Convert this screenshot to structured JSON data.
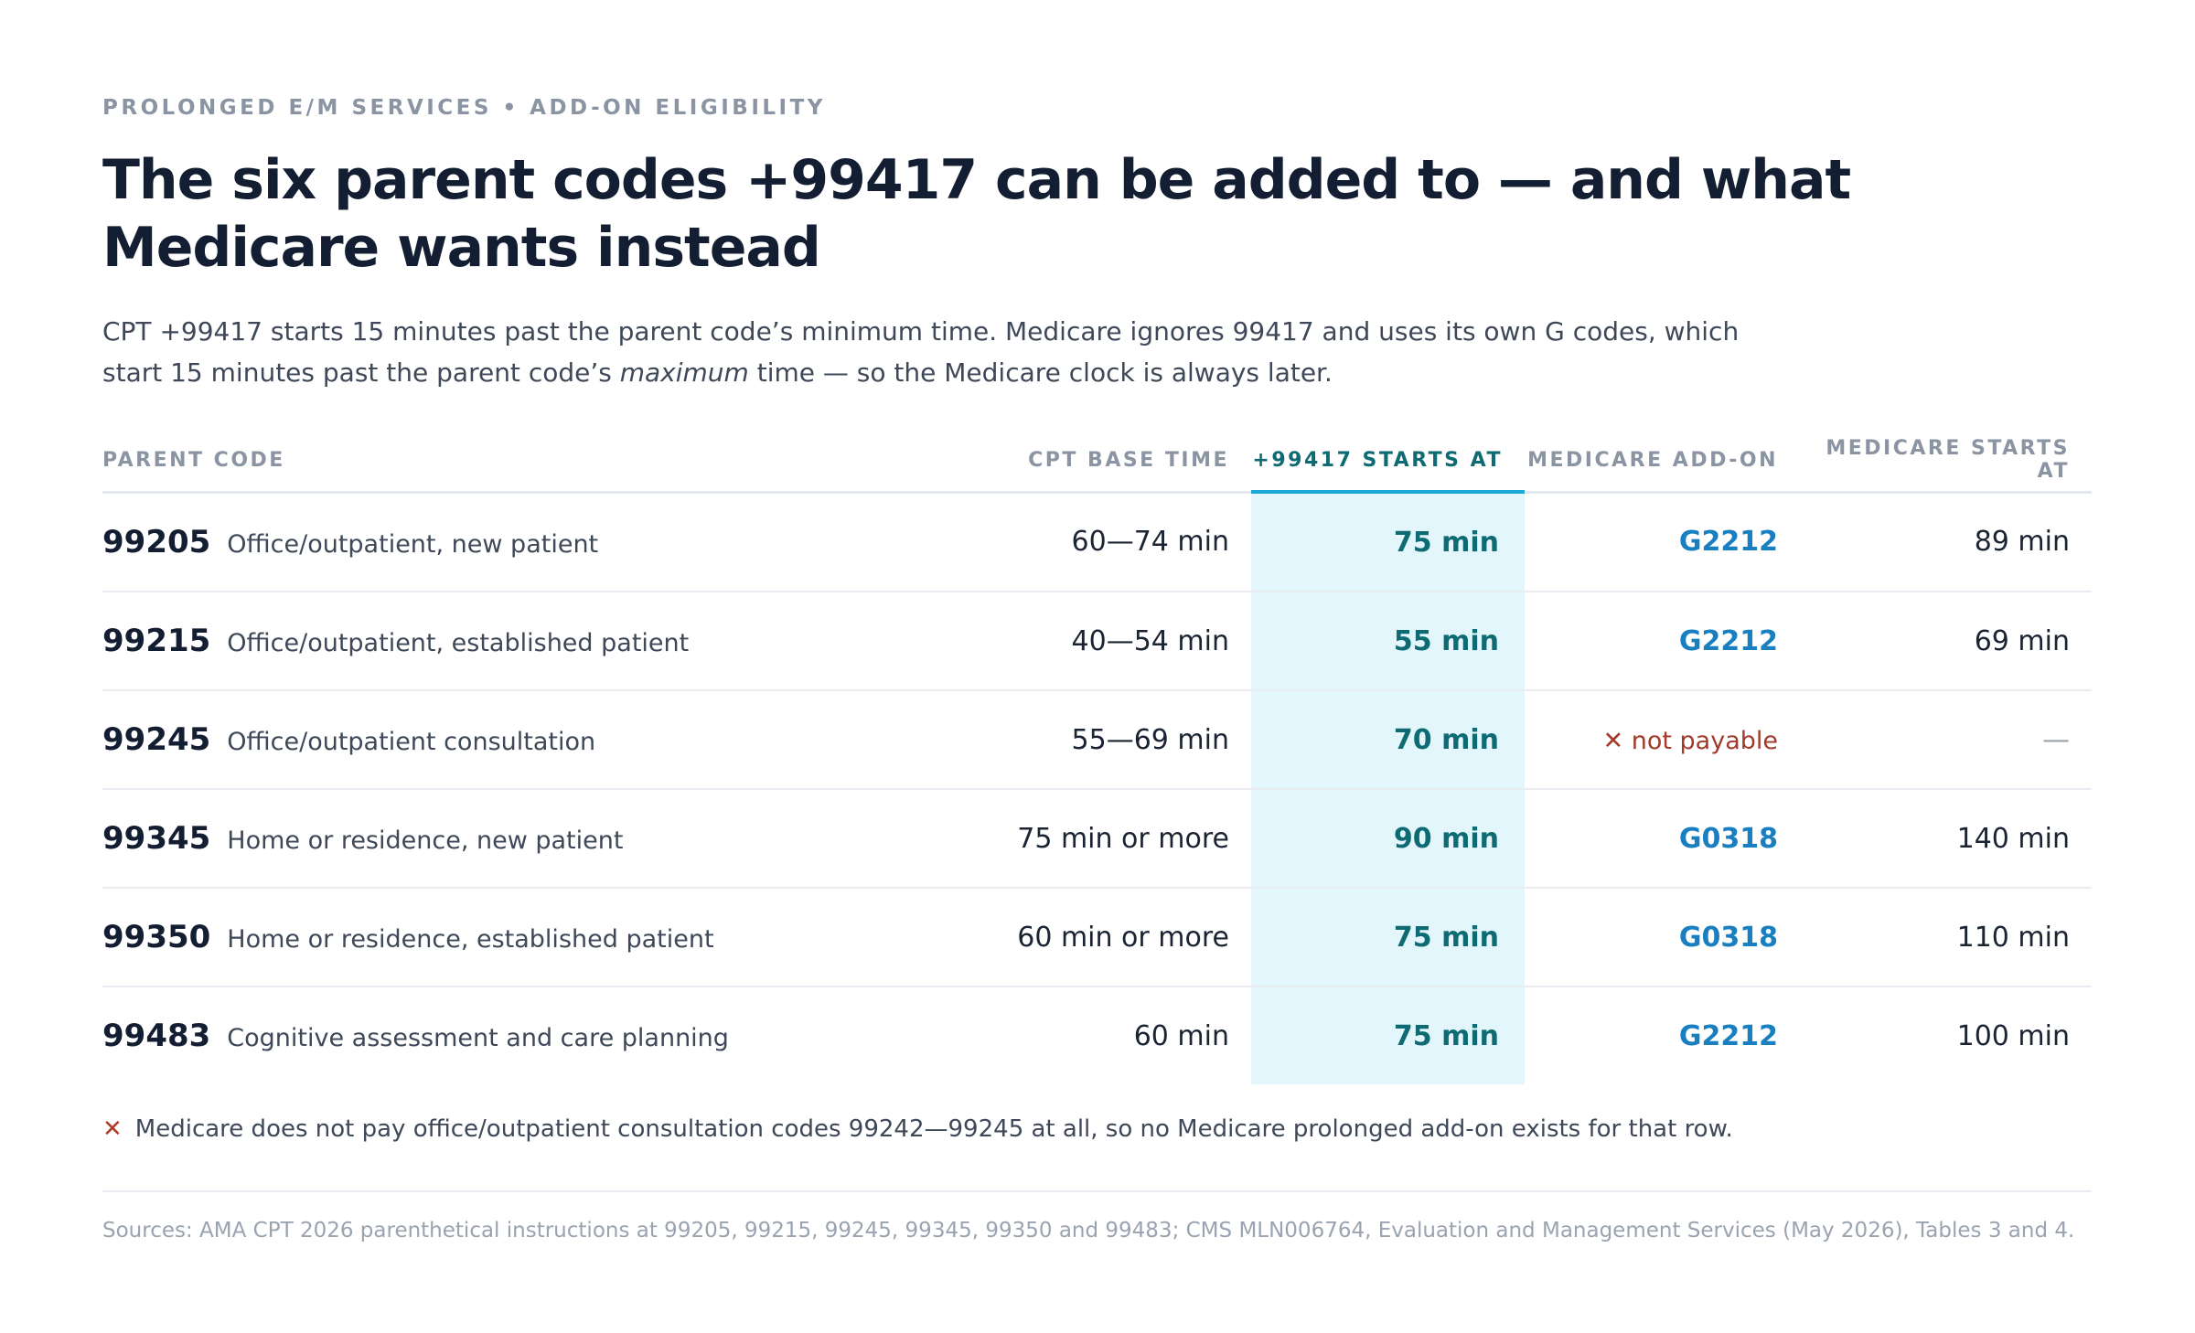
{
  "header": {
    "kicker": "PROLONGED E/M SERVICES • ADD-ON ELIGIBILITY",
    "title": "The six parent codes +99417 can be added to — and what Medicare wants instead",
    "subtitle_before": "CPT +99417 starts 15 minutes past the parent code’s minimum time. Medicare ignores 99417 and uses its own G codes, which start 15 minutes past the parent code’s",
    "subtitle_emphasis": "maximum",
    "subtitle_after": "time — so the Medicare clock is always later."
  },
  "table": {
    "columns": [
      "PARENT CODE",
      "CPT BASE TIME",
      "+99417 STARTS AT",
      "MEDICARE ADD-ON",
      "MEDICARE STARTS AT"
    ],
    "rows": [
      {
        "code": "99205",
        "description": "Office/outpatient, new patient",
        "base_time": "60—74 min",
        "starts_at": "75 min",
        "medicare_addon": "G2212",
        "medicare_starts_at": "89 min"
      },
      {
        "code": "99215",
        "description": "Office/outpatient, established patient",
        "base_time": "40—54 min",
        "starts_at": "55 min",
        "medicare_addon": "G2212",
        "medicare_starts_at": "69 min"
      },
      {
        "code": "99245",
        "description": "Office/outpatient consultation",
        "base_time": "55—69 min",
        "starts_at": "70 min",
        "medicare_addon": "not payable",
        "medicare_starts_at": "—"
      },
      {
        "code": "99345",
        "description": "Home or residence, new patient",
        "base_time": "75 min or more",
        "starts_at": "90 min",
        "medicare_addon": "G0318",
        "medicare_starts_at": "140 min"
      },
      {
        "code": "99350",
        "description": "Home or residence, established patient",
        "base_time": "60 min or more",
        "starts_at": "75 min",
        "medicare_addon": "G0318",
        "medicare_starts_at": "110 min"
      },
      {
        "code": "99483",
        "description": "Cognitive assessment and care planning",
        "base_time": "60 min",
        "starts_at": "75 min",
        "medicare_addon": "G2212",
        "medicare_starts_at": "100 min"
      }
    ]
  },
  "footnote": "Medicare does not pay office/outpatient consultation codes 99242—99245 at all, so no Medicare prolonged add-on exists for that row.",
  "sources": "Sources: AMA CPT 2026 parenthetical instructions at 99205, 99215, 99245, 99345, 99350 and 99483; CMS MLN006764, Evaluation and Management Services (May 2026), Tables 3 and 4."
}
